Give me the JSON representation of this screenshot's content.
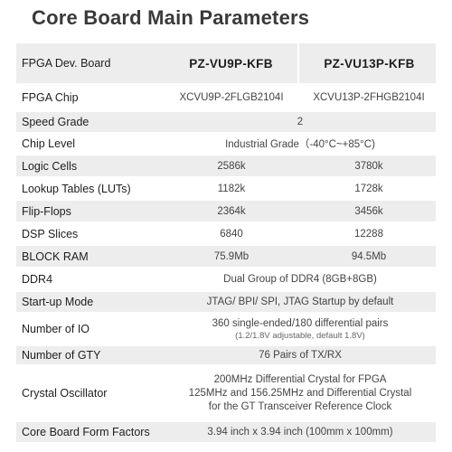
{
  "title": "Core Board Main Parameters",
  "header": {
    "label": "FPGA Dev. Board",
    "model_a": "PZ-VU9P-KFB",
    "model_b": "PZ-VU13P-KFB"
  },
  "rows": {
    "chip": {
      "label": "FPGA Chip",
      "a": "XCVU9P-2FLGB2104I",
      "b": "XCVU13P-2FHGB2104I"
    },
    "speed": {
      "label": "Speed Grade",
      "value": "2"
    },
    "level": {
      "label": "Chip Level",
      "value": "Industrial Grade（-40°C~+85°C)"
    },
    "logic": {
      "label": "Logic Cells",
      "a": "2586k",
      "b": "3780k"
    },
    "luts": {
      "label": "Lookup Tables (LUTs)",
      "a": "1182k",
      "b": "1728k"
    },
    "ff": {
      "label": "Flip-Flops",
      "a": "2364k",
      "b": "3456k"
    },
    "dsp": {
      "label": "DSP Slices",
      "a": "6840",
      "b": "12288"
    },
    "bram": {
      "label": "BLOCK RAM",
      "a": "75.9Mb",
      "b": "94.5Mb"
    },
    "ddr4": {
      "label": "DDR4",
      "value": "Dual Group of DDR4 (8GB+8GB)"
    },
    "startup": {
      "label": "Start-up Mode",
      "value": "JTAG/ BPI/ SPI, JTAG Startup by default"
    },
    "io": {
      "label": "Number of IO",
      "value": "360 single-ended/180 differential pairs",
      "note": "(1.2/1.8V adjustable, default 1.8V)"
    },
    "gty": {
      "label": "Number of GTY",
      "value": "76 Pairs of TX/RX"
    },
    "crystal": {
      "label": "Crystal Oscillator",
      "line1": "200MHz Differential Crystal  for FPGA",
      "line2": "125MHz and 156.25MHz and  Differential Crystal",
      "line3": "for the GT Transceiver Reference Clock"
    },
    "form": {
      "label": "Core Board Form Factors",
      "value": "3.94 inch x 3.94 inch (100mm x 100mm)"
    }
  }
}
